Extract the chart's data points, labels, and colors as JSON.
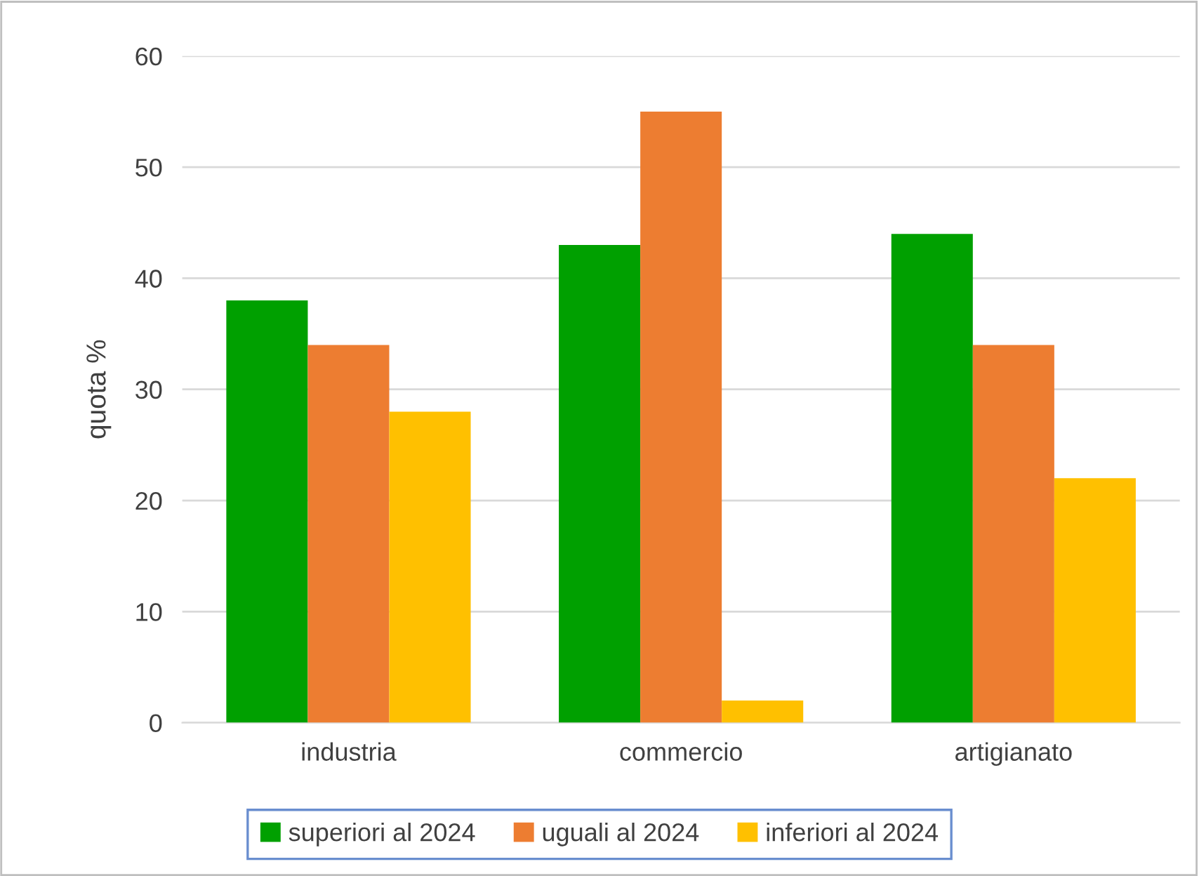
{
  "chart_data": {
    "type": "bar",
    "ylabel": "quota %",
    "categories": [
      "industria",
      "commercio",
      "artigianato"
    ],
    "series": [
      {
        "name": "superiori al 2024",
        "color": "#00a000",
        "values": [
          38,
          43,
          44
        ]
      },
      {
        "name": "uguali al 2024",
        "color": "#ed7d31",
        "values": [
          34,
          55,
          34
        ]
      },
      {
        "name": "inferiori al 2024",
        "color": "#ffc000",
        "values": [
          28,
          2,
          22
        ]
      }
    ],
    "ylim": [
      0,
      60
    ],
    "yticks": [
      0,
      10,
      20,
      30,
      40,
      50,
      60
    ],
    "grid": "y",
    "legend": "bottom"
  }
}
